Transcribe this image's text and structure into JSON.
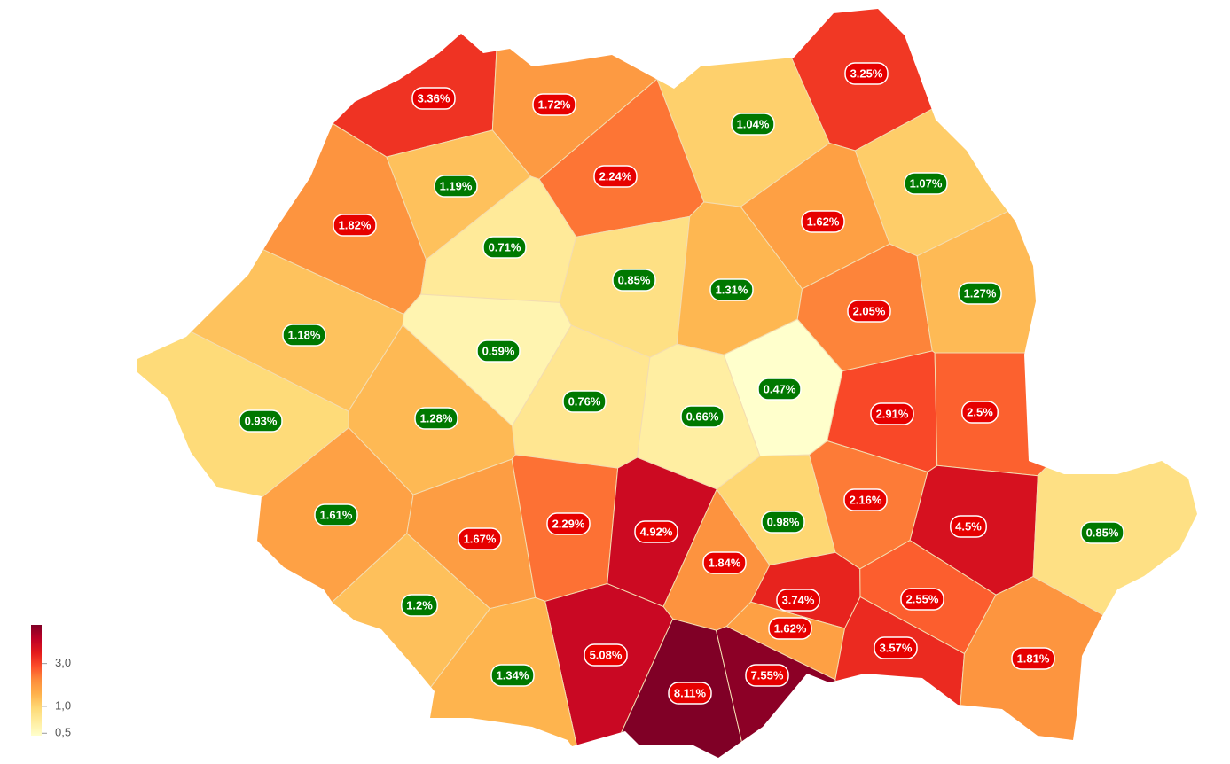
{
  "chart_data": {
    "type": "choropleth",
    "values": [
      3.36,
      1.72,
      3.25,
      1.04,
      2.24,
      1.19,
      1.82,
      1.62,
      1.07,
      0.71,
      0.85,
      1.31,
      2.05,
      1.27,
      1.18,
      0.59,
      0.47,
      0.76,
      0.66,
      2.91,
      2.5,
      0.93,
      1.28,
      1.61,
      1.67,
      2.29,
      4.92,
      1.84,
      0.98,
      2.16,
      4.5,
      0.85,
      3.74,
      2.55,
      1.62,
      1.2,
      5.08,
      8.11,
      7.55,
      3.57,
      1.81,
      1.34
    ],
    "value_labels": [
      "3.36%",
      "1.72%",
      "3.25%",
      "1.04%",
      "2.24%",
      "1.19%",
      "1.82%",
      "1.62%",
      "1.07%",
      "0.71%",
      "0.85%",
      "1.31%",
      "2.05%",
      "1.27%",
      "1.18%",
      "0.59%",
      "0.47%",
      "0.76%",
      "0.66%",
      "2.91%",
      "2.5%",
      "0.93%",
      "1.28%",
      "1.61%",
      "1.67%",
      "2.29%",
      "4.92%",
      "1.84%",
      "0.98%",
      "2.16%",
      "4.5%",
      "0.85%",
      "3.74%",
      "2.55%",
      "1.62%",
      "1.2%",
      "5.08%",
      "8.11%",
      "7.55%",
      "3.57%",
      "1.81%",
      "1.34%"
    ],
    "label_colors": [
      "#e60000",
      "#e60000",
      "#e60000",
      "#007800",
      "#e60000",
      "#007800",
      "#e60000",
      "#e60000",
      "#007800",
      "#007800",
      "#007800",
      "#007800",
      "#e60000",
      "#007800",
      "#007800",
      "#007800",
      "#007800",
      "#007800",
      "#007800",
      "#e60000",
      "#e60000",
      "#007800",
      "#007800",
      "#007800",
      "#e60000",
      "#e60000",
      "#e60000",
      "#e60000",
      "#007800",
      "#e60000",
      "#e60000",
      "#007800",
      "#e60000",
      "#e60000",
      "#e60000",
      "#007800",
      "#e60000",
      "#e60000",
      "#e60000",
      "#e60000",
      "#e60000",
      "#007800"
    ],
    "colors": [
      "#ffffcc",
      "#ffeda0",
      "#fed976",
      "#feb24c",
      "#fd8d3c",
      "#fc4e2a",
      "#e31a1c",
      "#bd0026",
      "#800026"
    ],
    "log_scale": true,
    "clim": [
      0.47,
      8.11
    ],
    "cticks": [
      {
        "value": 0.5,
        "label": "0,5"
      },
      {
        "value": 1,
        "label": "1,0"
      },
      {
        "value": 3,
        "label": "3,0"
      }
    ]
  }
}
